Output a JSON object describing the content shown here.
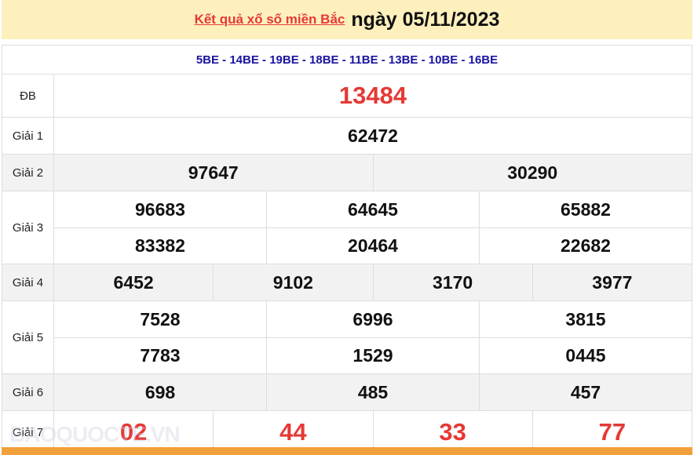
{
  "header": {
    "link": "Kết quả xổ số miền Bắc",
    "date": "ngày 05/11/2023"
  },
  "codes": "5BE - 14BE - 19BE - 18BE - 11BE - 13BE - 10BE - 16BE",
  "prizes": [
    {
      "label": "ĐB",
      "rows": [
        [
          "13484"
        ]
      ]
    },
    {
      "label": "Giải 1",
      "rows": [
        [
          "62472"
        ]
      ]
    },
    {
      "label": "Giải 2",
      "rows": [
        [
          "97647",
          "30290"
        ]
      ]
    },
    {
      "label": "Giải 3",
      "rows": [
        [
          "96683",
          "64645",
          "65882"
        ],
        [
          "83382",
          "20464",
          "22682"
        ]
      ]
    },
    {
      "label": "Giải 4",
      "rows": [
        [
          "6452",
          "9102",
          "3170",
          "3977"
        ]
      ]
    },
    {
      "label": "Giải 5",
      "rows": [
        [
          "7528",
          "6996",
          "3815"
        ],
        [
          "7783",
          "1529",
          "0445"
        ]
      ]
    },
    {
      "label": "Giải 6",
      "rows": [
        [
          "698",
          "485",
          "457"
        ]
      ]
    },
    {
      "label": "Giải 7",
      "rows": [
        [
          "02",
          "44",
          "33",
          "77"
        ]
      ]
    }
  ],
  "watermark": "BAOQUOCTE.VN",
  "colors": {
    "red": "#e53935",
    "codes": "#1a14a0",
    "header_bg": "#fdf0bd",
    "footer": "#f2a03c"
  }
}
